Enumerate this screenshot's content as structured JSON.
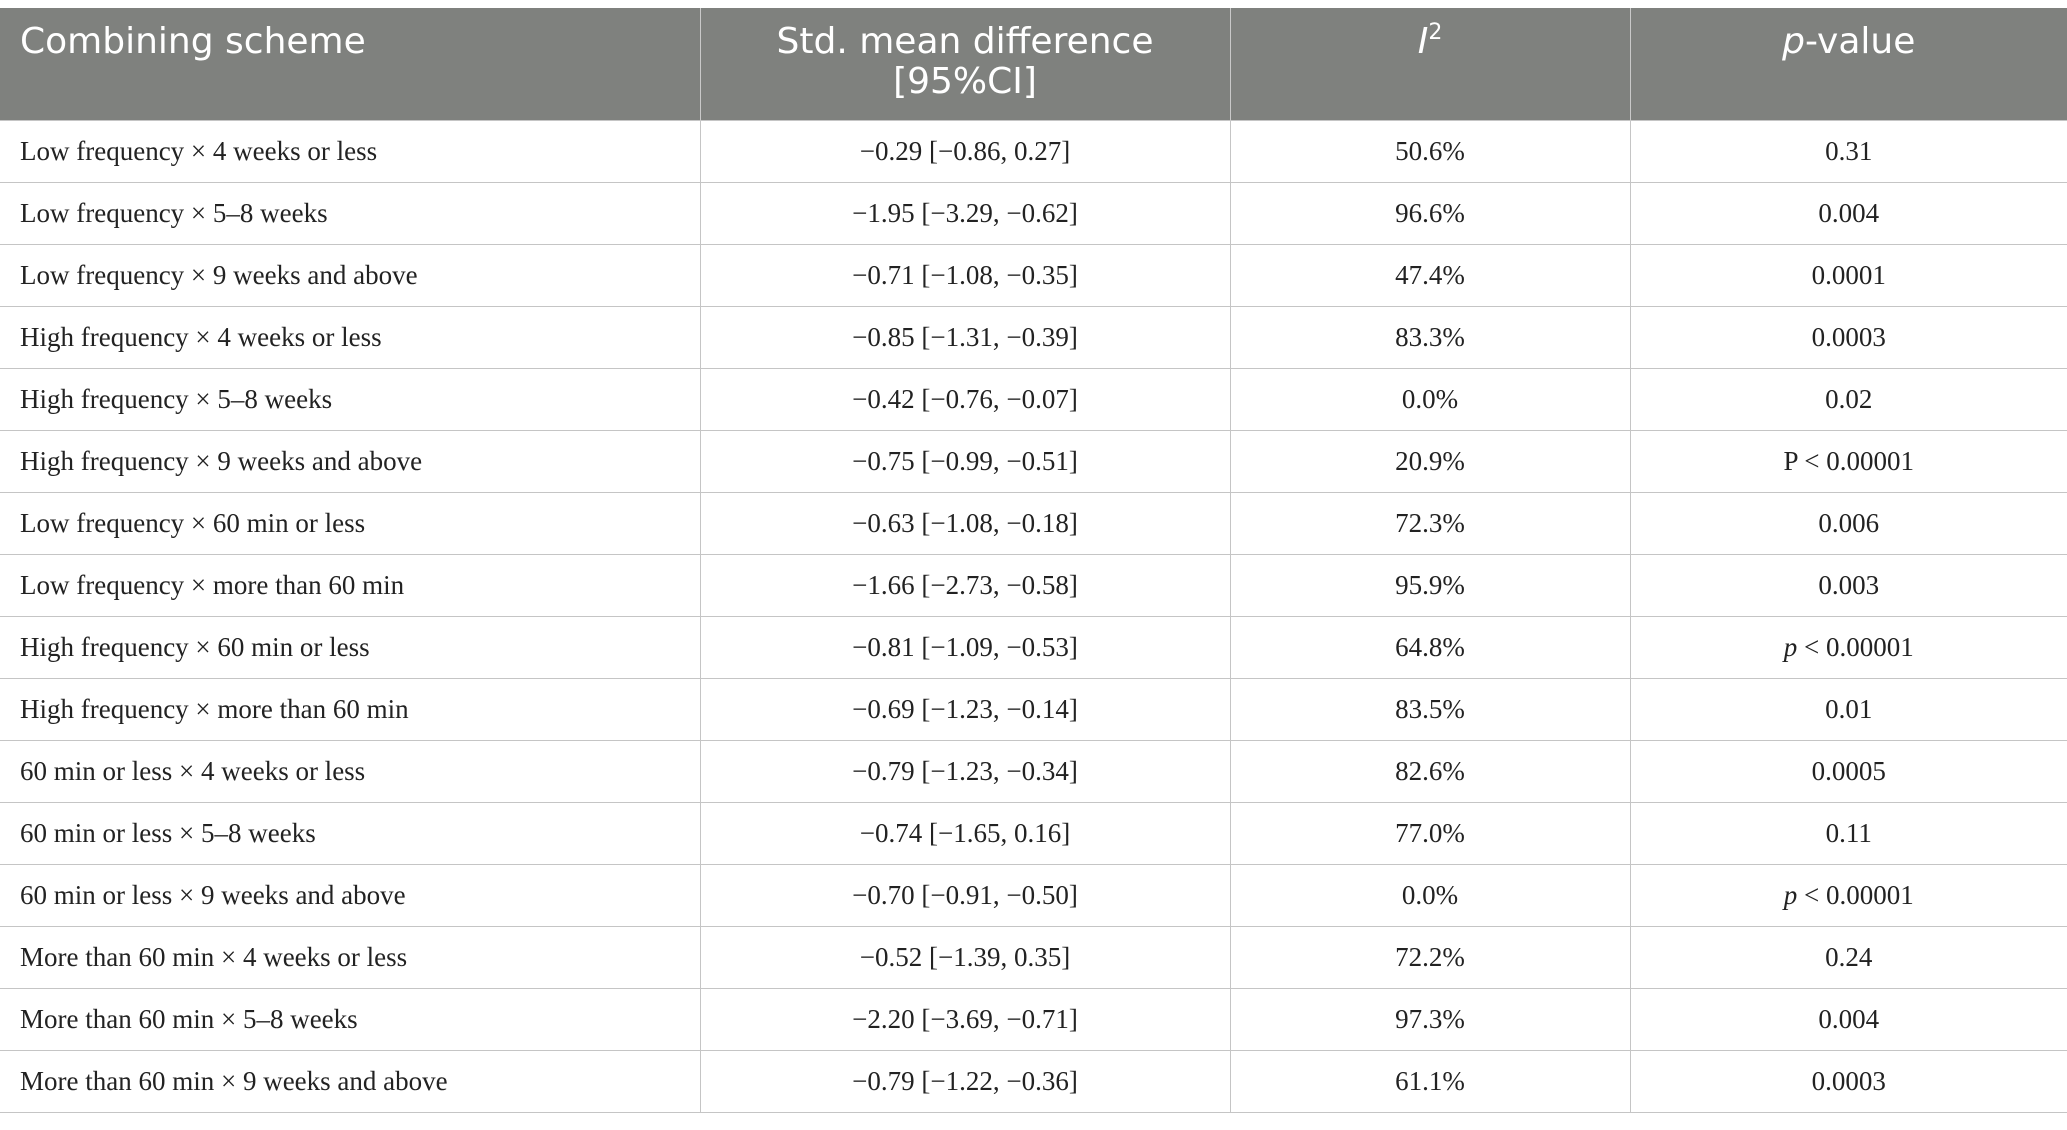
{
  "table": {
    "headers": {
      "combining_scheme": "Combining scheme",
      "smd_line1": "Std. mean difference",
      "smd_line2": "[95%CI]",
      "i2_letter": "I",
      "i2_sup": "2",
      "p_italic": "p",
      "p_rest": "-value"
    },
    "rows": [
      {
        "scheme": "Low frequency × 4 weeks or less",
        "smd": "−0.29 [−0.86, 0.27]",
        "i2": "50.6%",
        "p_prefix": "",
        "p": "0.31"
      },
      {
        "scheme": "Low frequency × 5–8 weeks",
        "smd": "−1.95 [−3.29, −0.62]",
        "i2": "96.6%",
        "p_prefix": "",
        "p": "0.004"
      },
      {
        "scheme": "Low frequency × 9 weeks and above",
        "smd": "−0.71 [−1.08, −0.35]",
        "i2": "47.4%",
        "p_prefix": "",
        "p": "0.0001"
      },
      {
        "scheme": "High frequency × 4 weeks or less",
        "smd": "−0.85 [−1.31, −0.39]",
        "i2": "83.3%",
        "p_prefix": "",
        "p": "0.0003"
      },
      {
        "scheme": "High frequency × 5–8 weeks",
        "smd": "−0.42 [−0.76, −0.07]",
        "i2": "0.0%",
        "p_prefix": "",
        "p": "0.02"
      },
      {
        "scheme": "High frequency × 9 weeks and above",
        "smd": "−0.75 [−0.99, −0.51]",
        "i2": "20.9%",
        "p_prefix": "",
        "p": "P < 0.00001"
      },
      {
        "scheme": "Low frequency × 60 min or less",
        "smd": "−0.63 [−1.08, −0.18]",
        "i2": "72.3%",
        "p_prefix": "",
        "p": "0.006"
      },
      {
        "scheme": "Low frequency × more than 60 min",
        "smd": "−1.66 [−2.73, −0.58]",
        "i2": "95.9%",
        "p_prefix": "",
        "p": "0.003"
      },
      {
        "scheme": "High frequency × 60 min or less",
        "smd": "−0.81 [−1.09, −0.53]",
        "i2": "64.8%",
        "p_prefix": "p",
        "p": " < 0.00001"
      },
      {
        "scheme": "High frequency × more than 60 min",
        "smd": "−0.69 [−1.23, −0.14]",
        "i2": "83.5%",
        "p_prefix": "",
        "p": "0.01"
      },
      {
        "scheme": "60 min or less × 4 weeks or less",
        "smd": "−0.79 [−1.23, −0.34]",
        "i2": "82.6%",
        "p_prefix": "",
        "p": "0.0005"
      },
      {
        "scheme": "60 min or less × 5–8 weeks",
        "smd": "−0.74 [−1.65, 0.16]",
        "i2": "77.0%",
        "p_prefix": "",
        "p": "0.11"
      },
      {
        "scheme": "60 min or less × 9 weeks and above",
        "smd": "−0.70 [−0.91, −0.50]",
        "i2": "0.0%",
        "p_prefix": "p",
        "p": " < 0.00001"
      },
      {
        "scheme": "More than 60 min × 4 weeks or less",
        "smd": "−0.52 [−1.39, 0.35]",
        "i2": "72.2%",
        "p_prefix": "",
        "p": "0.24"
      },
      {
        "scheme": "More than 60 min × 5–8 weeks",
        "smd": "−2.20 [−3.69, −0.71]",
        "i2": "97.3%",
        "p_prefix": "",
        "p": "0.004"
      },
      {
        "scheme": "More than 60 min × 9 weeks and above",
        "smd": "−0.79 [−1.22, −0.36]",
        "i2": "61.1%",
        "p_prefix": "",
        "p": "0.0003"
      }
    ]
  },
  "colors": {
    "header_bg": "#7f817e",
    "header_text": "#ffffff",
    "grid_line": "#c5c5c5",
    "body_text": "#222222"
  }
}
